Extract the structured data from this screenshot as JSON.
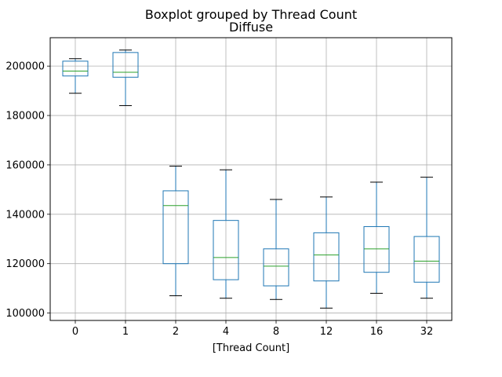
{
  "chart_data": {
    "type": "box",
    "suptitle": "Boxplot grouped by Thread Count",
    "title": "Diffuse",
    "xlabel": "[Thread Count]",
    "ylabel": "",
    "ylim": [
      97000,
      211500
    ],
    "yticks": [
      100000,
      120000,
      140000,
      160000,
      180000,
      200000
    ],
    "grid": true,
    "categories": [
      "0",
      "1",
      "2",
      "4",
      "8",
      "12",
      "16",
      "32"
    ],
    "boxes": [
      {
        "category": "0",
        "whisker_low": 189000,
        "q1": 196000,
        "median": 198000,
        "q3": 202000,
        "whisker_high": 203000
      },
      {
        "category": "1",
        "whisker_low": 184000,
        "q1": 195500,
        "median": 197500,
        "q3": 205500,
        "whisker_high": 206500
      },
      {
        "category": "2",
        "whisker_low": 107000,
        "q1": 120000,
        "median": 143500,
        "q3": 149500,
        "whisker_high": 159500
      },
      {
        "category": "4",
        "whisker_low": 106000,
        "q1": 113500,
        "median": 122500,
        "q3": 137500,
        "whisker_high": 158000
      },
      {
        "category": "8",
        "whisker_low": 105500,
        "q1": 111000,
        "median": 119000,
        "q3": 126000,
        "whisker_high": 146000
      },
      {
        "category": "12",
        "whisker_low": 102000,
        "q1": 113000,
        "median": 123500,
        "q3": 132500,
        "whisker_high": 147000
      },
      {
        "category": "16",
        "whisker_low": 108000,
        "q1": 116500,
        "median": 126000,
        "q3": 135000,
        "whisker_high": 153000
      },
      {
        "category": "32",
        "whisker_low": 106000,
        "q1": 112500,
        "median": 121000,
        "q3": 131000,
        "whisker_high": 155000
      }
    ],
    "colors": {
      "box": "#1f77b4",
      "median": "#2ca02c",
      "whisker_cap": "#000000",
      "grid": "#b0b0b0",
      "axes": "#000000"
    }
  }
}
